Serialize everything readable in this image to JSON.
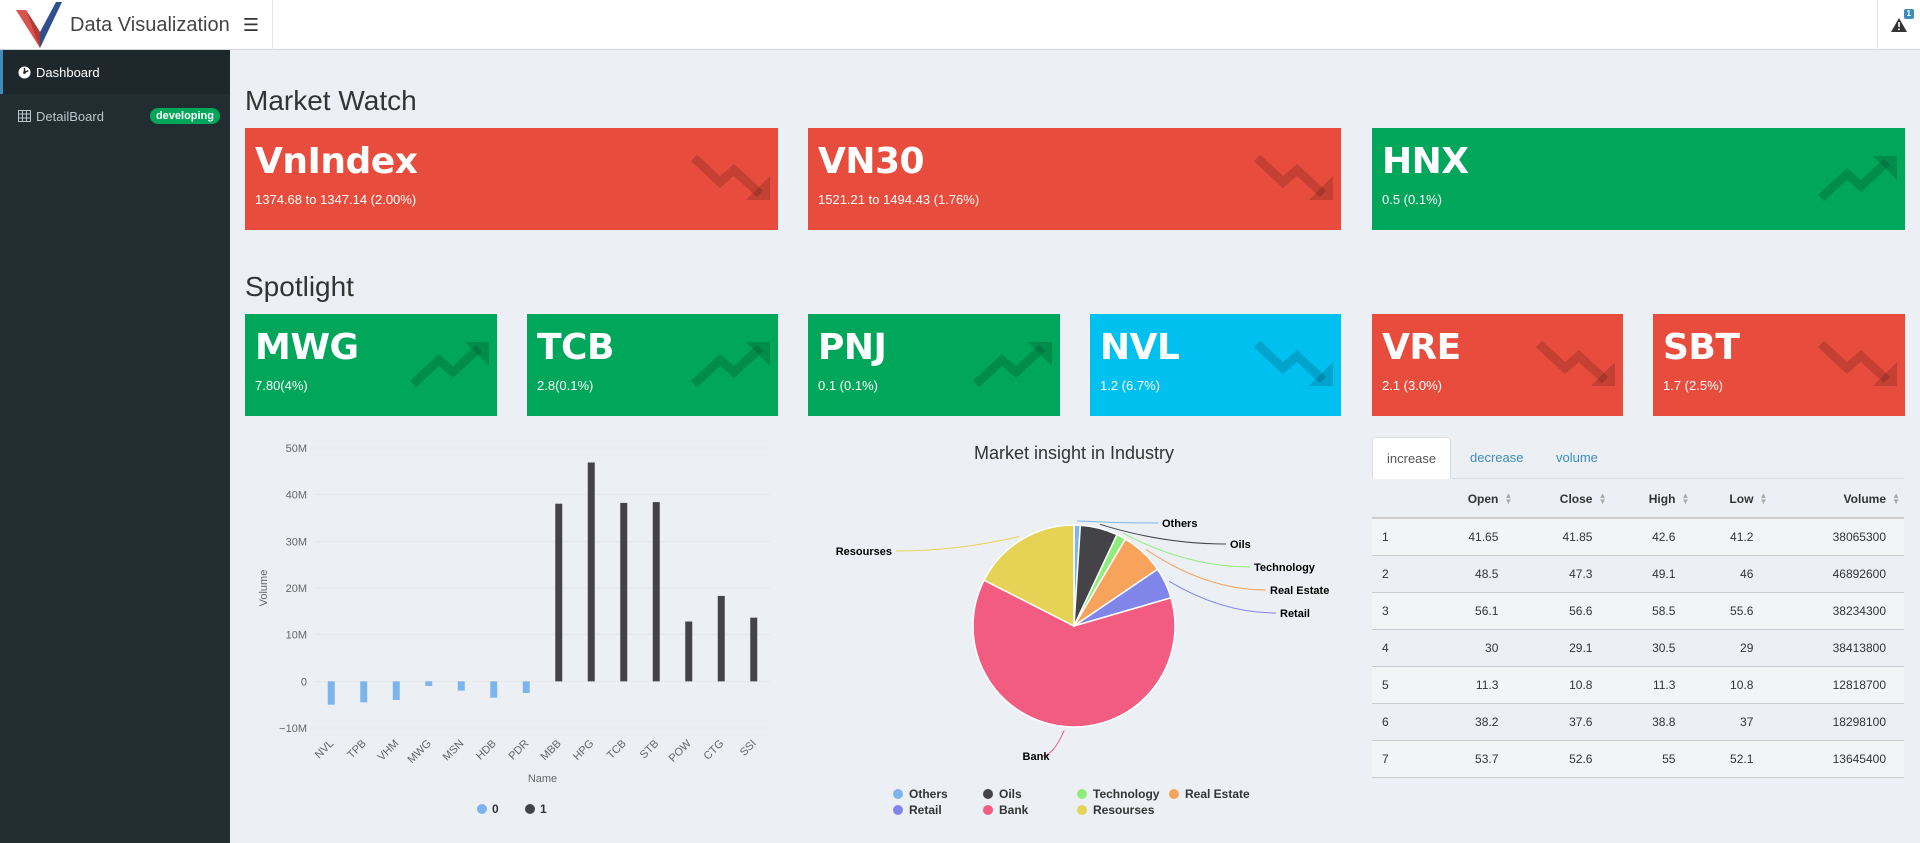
{
  "header": {
    "app_title": "Data Visualization",
    "notification_count": "1",
    "colors": {
      "logo_red": "#d9534f",
      "logo_blue": "#2f4f8f"
    }
  },
  "sidebar": {
    "items": [
      {
        "label": "Dashboard",
        "icon": "dashboard-icon",
        "active": true
      },
      {
        "label": "DetailBoard",
        "icon": "table-grid-icon",
        "badge": "developing"
      }
    ]
  },
  "market_watch": {
    "title": "Market Watch",
    "cards": [
      {
        "name": "VnIndex",
        "detail": "1374.68 to 1347.14 (2.00%)",
        "trend": "down",
        "color": "#e74c3c"
      },
      {
        "name": "VN30",
        "detail": "1521.21 to 1494.43 (1.76%)",
        "trend": "down",
        "color": "#e74c3c"
      },
      {
        "name": "HNX",
        "detail": "0.5 (0.1%)",
        "trend": "up",
        "color": "#00a65a"
      }
    ]
  },
  "spotlight": {
    "title": "Spotlight",
    "cards": [
      {
        "name": "MWG",
        "detail": "7.80(4%)",
        "trend": "up",
        "color": "#00a65a"
      },
      {
        "name": "TCB",
        "detail": "2.8(0.1%)",
        "trend": "up",
        "color": "#00a65a"
      },
      {
        "name": "PNJ",
        "detail": "0.1 (0.1%)",
        "trend": "up",
        "color": "#00a65a"
      },
      {
        "name": "NVL",
        "detail": "1.2 (6.7%)",
        "trend": "down",
        "color": "#00c0ef"
      },
      {
        "name": "VRE",
        "detail": "2.1 (3.0%)",
        "trend": "down",
        "color": "#e74c3c"
      },
      {
        "name": "SBT",
        "detail": "1.7 (2.5%)",
        "trend": "down",
        "color": "#e74c3c"
      }
    ]
  },
  "chart_data": [
    {
      "type": "bar",
      "xlabel": "Name",
      "ylabel": "Volume",
      "ylim": [
        -10000000,
        50000000
      ],
      "yticks": [
        "−10M",
        "0",
        "10M",
        "20M",
        "30M",
        "40M",
        "50M"
      ],
      "categories": [
        "NVL",
        "TPB",
        "VHM",
        "MWG",
        "MSN",
        "HDB",
        "PDR",
        "MBB",
        "HPG",
        "TCB",
        "STB",
        "POW",
        "CTG",
        "SSI"
      ],
      "series": [
        {
          "name": "0",
          "color": "#7cb5ec",
          "values": [
            -5000000,
            -4500000,
            -4000000,
            -1000000,
            -2000000,
            -3500000,
            -2500000,
            null,
            null,
            null,
            null,
            null,
            null,
            null
          ]
        },
        {
          "name": "1",
          "color": "#434348",
          "values": [
            null,
            null,
            null,
            null,
            null,
            null,
            null,
            38065300,
            46892600,
            38234300,
            38413800,
            12818700,
            18298100,
            13645400
          ]
        }
      ],
      "legend": "bottom-center"
    },
    {
      "type": "pie",
      "title": "Market insight in Industry",
      "labels": [
        "Others",
        "Oils",
        "Technology",
        "Real Estate",
        "Retail",
        "Bank",
        "Resourses"
      ],
      "values": [
        1,
        6,
        1.5,
        7,
        5,
        62,
        17.5
      ],
      "colors": [
        "#7cb5ec",
        "#434348",
        "#90ed7d",
        "#f7a35c",
        "#8085e9",
        "#f15c80",
        "#e4d354"
      ],
      "legend": "bottom"
    }
  ],
  "table": {
    "tabs": [
      "increase",
      "decrease",
      "volume"
    ],
    "active_tab": "increase",
    "columns": [
      "",
      "Open",
      "Close",
      "High",
      "Low",
      "Volume"
    ],
    "rows": [
      [
        "1",
        "41.65",
        "41.85",
        "42.6",
        "41.2",
        "38065300"
      ],
      [
        "2",
        "48.5",
        "47.3",
        "49.1",
        "46",
        "46892600"
      ],
      [
        "3",
        "56.1",
        "56.6",
        "58.5",
        "55.6",
        "38234300"
      ],
      [
        "4",
        "30",
        "29.1",
        "30.5",
        "29",
        "38413800"
      ],
      [
        "5",
        "11.3",
        "10.8",
        "11.3",
        "10.8",
        "12818700"
      ],
      [
        "6",
        "38.2",
        "37.6",
        "38.8",
        "37",
        "18298100"
      ],
      [
        "7",
        "53.7",
        "52.6",
        "55",
        "52.1",
        "13645400"
      ]
    ]
  }
}
